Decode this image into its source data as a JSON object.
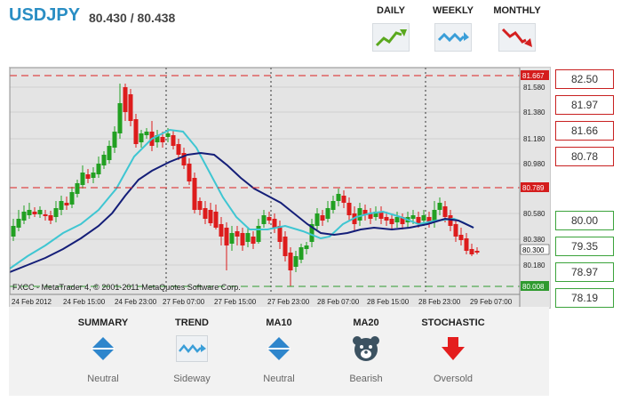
{
  "header": {
    "symbol": "USDJPY",
    "price": "80.430 / 80.438",
    "periods": [
      {
        "label": "DAILY",
        "icon": "uptrend-chart-icon"
      },
      {
        "label": "WEEKLY",
        "icon": "sideways-chart-icon"
      },
      {
        "label": "MONTHLY",
        "icon": "downtrend-chart-icon"
      }
    ]
  },
  "chart": {
    "watermark": "FXCC - MetaTrader 4, © 2001-2011 MetaQuotes Software Corp.",
    "price_ticks": [
      "81.580",
      "81.380",
      "81.180",
      "80.980",
      "80.580",
      "80.380",
      "80.180"
    ],
    "time_ticks": [
      "24 Feb 2012",
      "24 Feb 15:00",
      "24 Feb 23:00",
      "27 Feb 07:00",
      "27 Feb 15:00",
      "27 Feb 23:00",
      "28 Feb 07:00",
      "28 Feb 15:00",
      "28 Feb 23:00",
      "29 Feb 07:00"
    ],
    "markers": {
      "high": "81.667",
      "mid": "80.789",
      "current": "80.300",
      "low": "80.008"
    },
    "colors": {
      "bull": "#22a022",
      "bear": "#dd1c1c",
      "ma10": "#3fc6d2",
      "ma20": "#141e78",
      "resistance": "#dd2020",
      "support": "#2e9a2e"
    }
  },
  "levels": {
    "resistance": [
      "82.50",
      "81.97",
      "81.66",
      "80.78"
    ],
    "support": [
      "80.00",
      "79.35",
      "78.97",
      "78.19"
    ]
  },
  "indicators": [
    {
      "title": "SUMMARY",
      "icon": "diamond-neutral-icon",
      "value": "Neutral"
    },
    {
      "title": "TREND",
      "icon": "sideways-chart-icon",
      "value": "Sideway"
    },
    {
      "title": "MA10",
      "icon": "diamond-neutral-icon",
      "value": "Neutral"
    },
    {
      "title": "MA20",
      "icon": "bear-icon",
      "value": "Bearish"
    },
    {
      "title": "STOCHASTIC",
      "icon": "arrow-down-icon",
      "value": "Oversold"
    }
  ]
}
